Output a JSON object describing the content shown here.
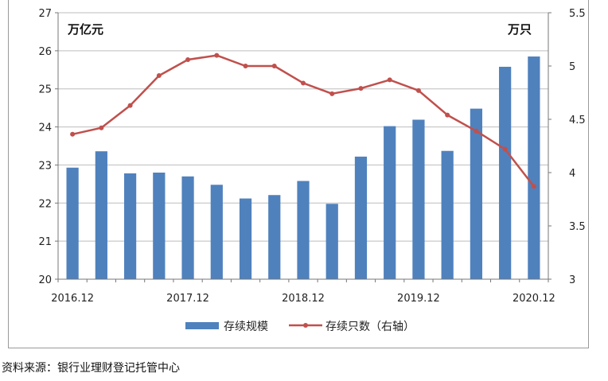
{
  "chart_data": {
    "type": "bar",
    "x_tick_labels": [
      "2016.12",
      "2017.12",
      "2018.12",
      "2019.12",
      "2020.12"
    ],
    "y_left_unit": "万亿元",
    "y_right_unit": "万只",
    "y_left_lim": [
      20,
      27
    ],
    "y_right_lim": [
      3,
      5.5
    ],
    "y_left_ticks": [
      "20",
      "21",
      "22",
      "23",
      "24",
      "25",
      "26",
      "27"
    ],
    "y_right_ticks": [
      "3",
      "3.5",
      "4",
      "4.5",
      "5",
      "5.5"
    ],
    "grid": "horizontal",
    "legend_position": "bottom",
    "series": [
      {
        "name": "存续规模",
        "type": "bar",
        "axis": "left",
        "color": "#4f81bd",
        "values": [
          22.93,
          23.36,
          22.78,
          22.8,
          22.7,
          22.48,
          22.12,
          22.21,
          22.58,
          21.98,
          23.22,
          24.02,
          24.19,
          23.37,
          24.48,
          25.58,
          25.85
        ]
      },
      {
        "name": "存续只数（右轴）",
        "type": "line",
        "axis": "right",
        "color": "#c0504d",
        "values": [
          4.36,
          4.42,
          4.63,
          4.91,
          5.06,
          5.1,
          5.0,
          5.0,
          4.84,
          4.74,
          4.79,
          4.87,
          4.77,
          4.54,
          4.39,
          4.22,
          3.87
        ]
      }
    ]
  },
  "source_note": "资料来源：银行业理财登记托管中心"
}
